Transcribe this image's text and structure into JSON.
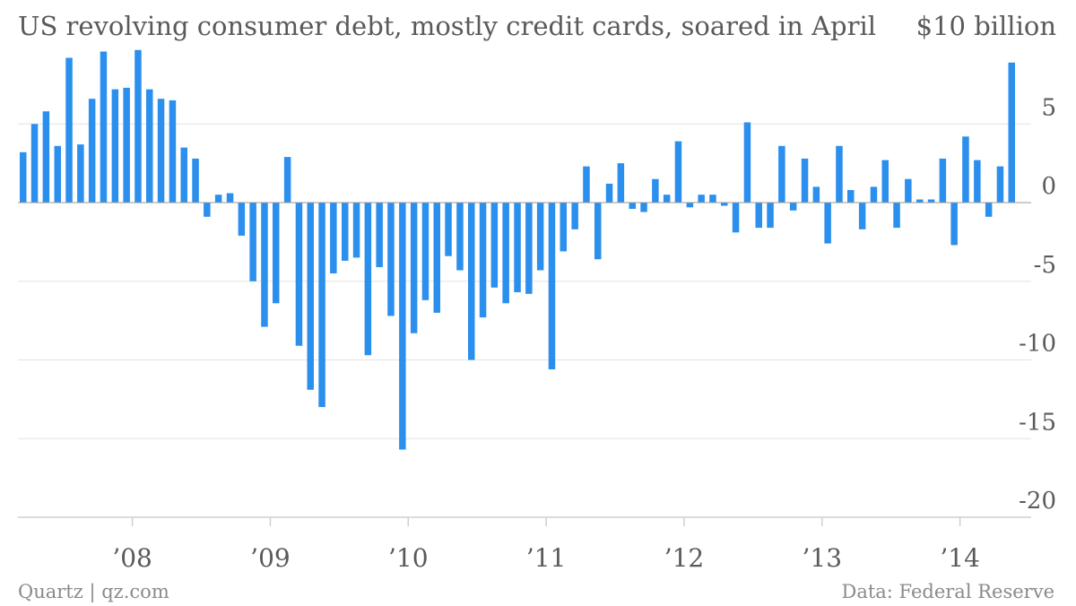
{
  "title": "US revolving consumer debt, mostly credit cards, soared in April",
  "unit_label": "$10 billion",
  "footer": {
    "source_left": "Quartz | qz.com",
    "source_right": "Data: Federal Reserve"
  },
  "colors": {
    "bar": "#2b8fee",
    "grid": "#e2e2e2",
    "axis": "#cfcfcf",
    "tick_text": "#5a5a5a",
    "footer_text": "#8a8a8a"
  },
  "chart_data": {
    "type": "bar",
    "frequency": "monthly",
    "first_period": "2007-03",
    "last_period": "2014-04",
    "values": [
      3.2,
      5.0,
      5.8,
      3.6,
      9.2,
      3.7,
      6.6,
      9.6,
      7.2,
      7.3,
      9.7,
      7.2,
      6.6,
      6.5,
      3.5,
      2.8,
      -0.9,
      0.5,
      0.6,
      -2.1,
      -5.0,
      -7.9,
      -6.4,
      2.9,
      -9.1,
      -11.9,
      -13.0,
      -4.5,
      -3.7,
      -3.5,
      -9.7,
      -4.1,
      -7.2,
      -15.7,
      -8.3,
      -6.2,
      -7.0,
      -3.4,
      -4.3,
      -10.0,
      -7.3,
      -5.4,
      -6.4,
      -5.7,
      -5.8,
      -4.3,
      -10.6,
      -3.1,
      -1.7,
      2.3,
      -3.6,
      1.2,
      2.5,
      -0.4,
      -0.6,
      1.5,
      0.5,
      3.9,
      -0.3,
      0.5,
      0.5,
      -0.2,
      -1.9,
      5.1,
      -1.6,
      -1.6,
      3.6,
      -0.5,
      2.8,
      1.0,
      -2.6,
      3.6,
      0.8,
      -1.7,
      1.0,
      2.7,
      -1.6,
      1.5,
      0.2,
      0.2,
      2.8,
      -2.7,
      4.2,
      2.7,
      -0.9,
      2.3,
      8.9
    ],
    "x_tick_labels": [
      "’08",
      "’09",
      "’10",
      "’11",
      "’12",
      "’13",
      "’14"
    ],
    "y_ticks": [
      5,
      0,
      -5,
      -10,
      -15,
      -20
    ],
    "y_tick_labels": [
      "5",
      "0",
      "-5",
      "-10",
      "-15",
      "-20"
    ],
    "ylim": [
      -20,
      10
    ],
    "grid": true
  }
}
